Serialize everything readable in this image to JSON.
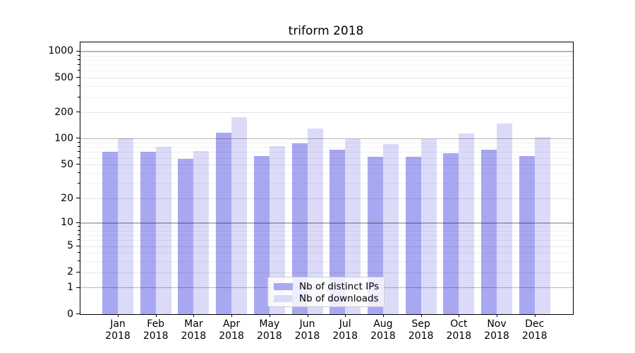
{
  "title": "triform 2018",
  "legend": {
    "items": [
      {
        "label": "Nb of distinct IPs",
        "color": "#a8a8f2"
      },
      {
        "label": "Nb of downloads",
        "color": "#dbdbf9"
      }
    ],
    "position": "lower center"
  },
  "chart_data": {
    "type": "bar",
    "title": "triform 2018",
    "categories": [
      "Jan",
      "Feb",
      "Mar",
      "Apr",
      "May",
      "Jun",
      "Jul",
      "Aug",
      "Sep",
      "Oct",
      "Nov",
      "Dec"
    ],
    "year": "2018",
    "series": [
      {
        "name": "Nb of distinct IPs",
        "color": "#a8a8f2",
        "values": [
          70,
          70,
          58,
          118,
          63,
          88,
          75,
          62,
          62,
          68,
          75,
          63
        ]
      },
      {
        "name": "Nb of downloads",
        "color": "#dbdbf9",
        "values": [
          100,
          80,
          72,
          177,
          82,
          131,
          99,
          86,
          99,
          116,
          149,
          105
        ]
      }
    ],
    "xlabel": "",
    "ylabel": "",
    "yscale": "log1p",
    "ylim": [
      0,
      1272
    ],
    "yticks": [
      0,
      1,
      2,
      5,
      10,
      20,
      50,
      100,
      200,
      500,
      1000
    ],
    "yticks_major_grid": [
      1,
      10,
      100,
      1000
    ],
    "yticks_minor": [
      3,
      4,
      6,
      7,
      8,
      9,
      30,
      40,
      60,
      70,
      80,
      90,
      300,
      400,
      600,
      700,
      800,
      900
    ],
    "grid": "horizontal",
    "legend_position": "lower center"
  }
}
